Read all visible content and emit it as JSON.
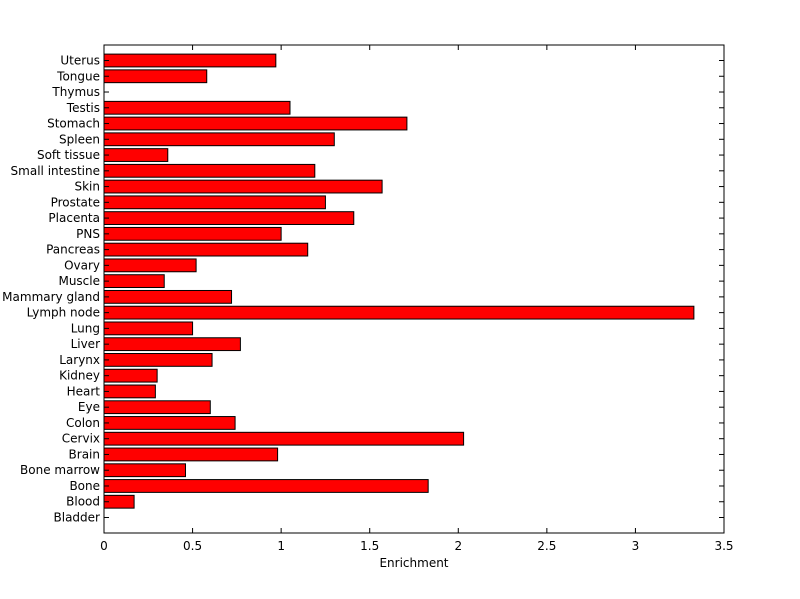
{
  "chart_data": {
    "type": "bar",
    "orientation": "horizontal",
    "categories": [
      "Bladder",
      "Blood",
      "Bone",
      "Bone marrow",
      "Brain",
      "Cervix",
      "Colon",
      "Eye",
      "Heart",
      "Kidney",
      "Larynx",
      "Liver",
      "Lung",
      "Lymph node",
      "Mammary gland",
      "Muscle",
      "Ovary",
      "Pancreas",
      "PNS",
      "Placenta",
      "Prostate",
      "Skin",
      "Small intestine",
      "Soft tissue",
      "Spleen",
      "Stomach",
      "Testis",
      "Thymus",
      "Tongue",
      "Uterus"
    ],
    "values": [
      0,
      0.17,
      1.83,
      0.46,
      0.98,
      2.03,
      0.74,
      0.6,
      0.29,
      0.3,
      0.61,
      0.77,
      0.5,
      3.33,
      0.72,
      0.34,
      0.52,
      1.15,
      1.0,
      1.41,
      1.25,
      1.57,
      1.19,
      0.36,
      1.3,
      1.71,
      1.05,
      0,
      0.58,
      0.97
    ],
    "title": "",
    "xlabel": "Enrichment",
    "ylabel": "",
    "xlim": [
      0,
      3.5
    ],
    "xticks": [
      "0",
      "0.5",
      "1",
      "1.5",
      "2",
      "2.5",
      "3",
      "3.5"
    ],
    "bar_color": "#ff0000",
    "edge_color": "#000000",
    "grid": false,
    "legend": "none"
  }
}
